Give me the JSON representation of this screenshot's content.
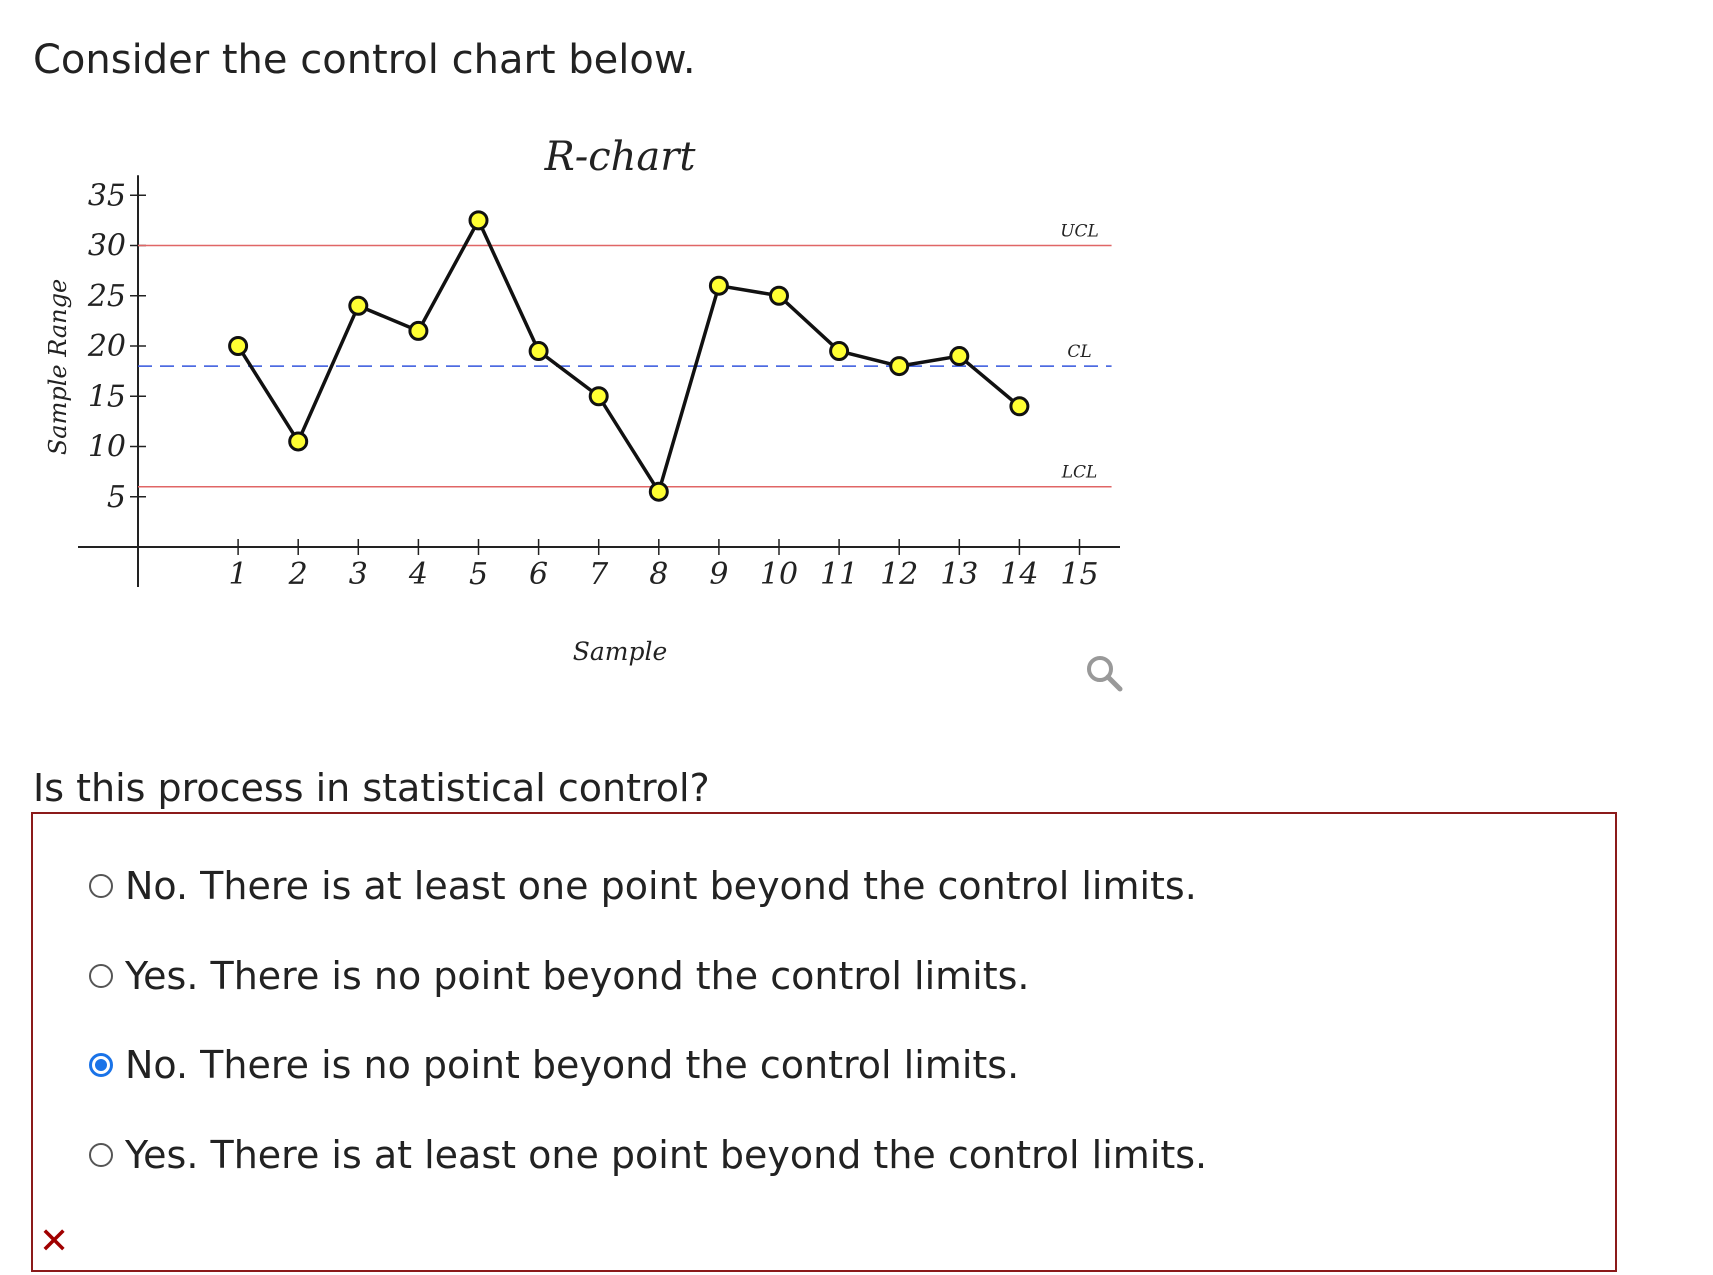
{
  "prompt": "Consider the control chart below.",
  "question": "Is this process in statistical control?",
  "choices": [
    {
      "label": "No. There is at least one point beyond the control limits.",
      "selected": false
    },
    {
      "label": "Yes. There is no point beyond the control limits.",
      "selected": false
    },
    {
      "label": "No. There is no point beyond the control limits.",
      "selected": true
    },
    {
      "label": "Yes. There is at least one point beyond the control limits.",
      "selected": false
    }
  ],
  "feedback_mark": "✕",
  "zoom_icon": "magnifier-icon",
  "colors": {
    "limit_line": "#e06666",
    "center_line": "#3355dd",
    "point_fill": "#ffff33",
    "radio_selected": "#1a73e8",
    "box_border": "#8b1a1a"
  },
  "chart_data": {
    "type": "line",
    "title": "R-chart",
    "xlabel": "Sample",
    "ylabel": "Sample Range",
    "x": [
      1,
      2,
      3,
      4,
      5,
      6,
      7,
      8,
      9,
      10,
      11,
      12,
      13,
      14
    ],
    "values": [
      20,
      10.5,
      24,
      21.5,
      32.5,
      19.5,
      15,
      5.5,
      26,
      25,
      19.5,
      18,
      19,
      14
    ],
    "xticks": [
      "1",
      "2",
      "3",
      "4",
      "5",
      "6",
      "7",
      "8",
      "9",
      "10",
      "11",
      "12",
      "13",
      "14",
      "15"
    ],
    "yticks": [
      "5",
      "10",
      "15",
      "20",
      "25",
      "30",
      "35"
    ],
    "xlim": [
      0,
      15.7
    ],
    "ylim": [
      0,
      35
    ],
    "lines": [
      {
        "label": "UCL",
        "value": 30
      },
      {
        "label": "CL",
        "value": 18
      },
      {
        "label": "LCL",
        "value": 6
      }
    ]
  }
}
